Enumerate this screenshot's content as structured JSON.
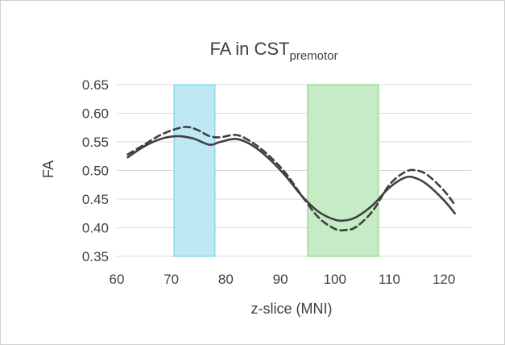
{
  "chart_data": {
    "type": "line",
    "title": "FA in CST",
    "title_subscript": "premotor",
    "xlabel": "z-slice (MNI)",
    "ylabel": "FA",
    "xlim": [
      60,
      125
    ],
    "ylim": [
      0.35,
      0.65
    ],
    "xticks": [
      "60",
      "70",
      "80",
      "90",
      "100",
      "110",
      "120"
    ],
    "yticks": [
      "0.35",
      "0.40",
      "0.45",
      "0.50",
      "0.55",
      "0.60",
      "0.65"
    ],
    "grid": true,
    "legend": "none",
    "highlight_bands": [
      {
        "x": [
          70.5,
          78
        ],
        "color": "#bfe8f5",
        "stroke": "#7fd0ec"
      },
      {
        "x": [
          95,
          108
        ],
        "color": "#c6ecc6",
        "stroke": "#8fd68f"
      }
    ],
    "series": [
      {
        "style": "solid",
        "color": "#404040",
        "x": [
          62,
          65,
          68,
          71,
          74,
          77,
          79,
          82,
          85,
          88,
          91,
          94,
          97,
          100,
          102,
          104,
          107,
          110,
          113,
          115,
          117,
          120,
          122
        ],
        "y": [
          0.523,
          0.542,
          0.555,
          0.56,
          0.556,
          0.545,
          0.55,
          0.555,
          0.543,
          0.52,
          0.49,
          0.455,
          0.428,
          0.414,
          0.413,
          0.419,
          0.44,
          0.47,
          0.488,
          0.486,
          0.475,
          0.448,
          0.425
        ]
      },
      {
        "style": "dashed",
        "color": "#404040",
        "x": [
          62,
          65,
          68,
          71,
          73,
          75,
          77,
          79,
          82,
          85,
          88,
          91,
          94,
          97,
          100,
          102,
          104,
          107,
          110,
          113,
          115,
          117,
          120,
          122
        ],
        "y": [
          0.528,
          0.545,
          0.562,
          0.573,
          0.576,
          0.57,
          0.56,
          0.558,
          0.562,
          0.548,
          0.525,
          0.495,
          0.455,
          0.418,
          0.398,
          0.396,
          0.402,
          0.43,
          0.475,
          0.498,
          0.5,
          0.492,
          0.465,
          0.44
        ]
      }
    ]
  }
}
